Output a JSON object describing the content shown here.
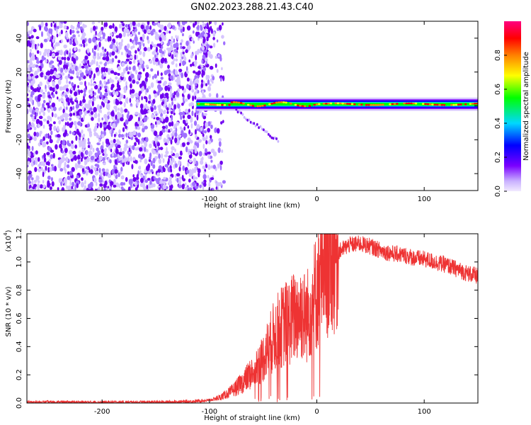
{
  "title": "GN02.2023.288.21.43.C40",
  "colors": {
    "trace": "#ee3333",
    "spectrogram_speckle": "#7a00f0",
    "colormap": [
      "#d8c8ff",
      "#7a00ff",
      "#0000ff",
      "#00e0ff",
      "#00ff00",
      "#ffff00",
      "#ff8000",
      "#ff0000",
      "#ff0080"
    ]
  },
  "chart_data": [
    {
      "type": "heatmap",
      "title": "GN02.2023.288.21.43.C40",
      "xlabel": "Height of straight line (km)",
      "ylabel": "Frequency (Hz)",
      "xlim": [
        -270,
        150
      ],
      "ylim": [
        -50,
        50
      ],
      "xticks": [
        -200,
        -100,
        0,
        100
      ],
      "yticks": [
        -40,
        -20,
        0,
        20,
        40
      ],
      "xtick_labels": [
        "-200",
        "-100",
        "0",
        "100"
      ],
      "ytick_labels": [
        "-40",
        "-20",
        "0",
        "20",
        "40"
      ],
      "noise_region_x": [
        -270,
        -100
      ],
      "signal_start_x": -112,
      "signal_frequency_hz": 1,
      "signal_band_halfwidth_hz": 3,
      "colorbar": {
        "label": "Normalized spectral amplitude",
        "range": [
          0,
          1
        ],
        "ticks": [
          0.0,
          0.2,
          0.4,
          0.6,
          0.8
        ],
        "tick_labels": [
          "0.0",
          "0.2",
          "0.4",
          "0.6",
          "0.8"
        ]
      }
    },
    {
      "type": "line",
      "xlabel": "Height of straight line (km)",
      "ylabel": "SNR (10 * v/v)",
      "multiplier_label": "(x10",
      "multiplier_exp": "4",
      "xlim": [
        -270,
        150
      ],
      "ylim": [
        0,
        1.2
      ],
      "xticks": [
        -200,
        -100,
        0,
        100
      ],
      "yticks": [
        0.0,
        0.2,
        0.4,
        0.6,
        0.8,
        1.0,
        1.2
      ],
      "xtick_labels": [
        "-200",
        "-100",
        "0",
        "100"
      ],
      "ytick_labels": [
        "0.0",
        "0.2",
        "0.4",
        "0.6",
        "0.8",
        "1.0",
        "1.2"
      ],
      "series": [
        {
          "color": "#ee3333",
          "x": [
            -270,
            -250,
            -200,
            -150,
            -120,
            -100,
            -90,
            -80,
            -70,
            -65,
            -60,
            -55,
            -50,
            -45,
            -40,
            -35,
            -30,
            -25,
            -20,
            -15,
            -10,
            -5,
            0,
            5,
            10,
            20,
            30,
            40,
            50,
            60,
            70,
            80,
            90,
            100,
            110,
            120,
            130,
            140,
            150
          ],
          "y": [
            0.005,
            0.006,
            0.005,
            0.006,
            0.01,
            0.02,
            0.04,
            0.08,
            0.14,
            0.18,
            0.22,
            0.27,
            0.32,
            0.4,
            0.47,
            0.52,
            0.56,
            0.58,
            0.62,
            0.65,
            0.6,
            0.7,
            0.8,
            0.92,
            1.0,
            1.07,
            1.12,
            1.13,
            1.11,
            1.08,
            1.06,
            1.05,
            1.03,
            1.02,
            1.0,
            0.98,
            0.95,
            0.92,
            0.9
          ]
        }
      ]
    }
  ]
}
